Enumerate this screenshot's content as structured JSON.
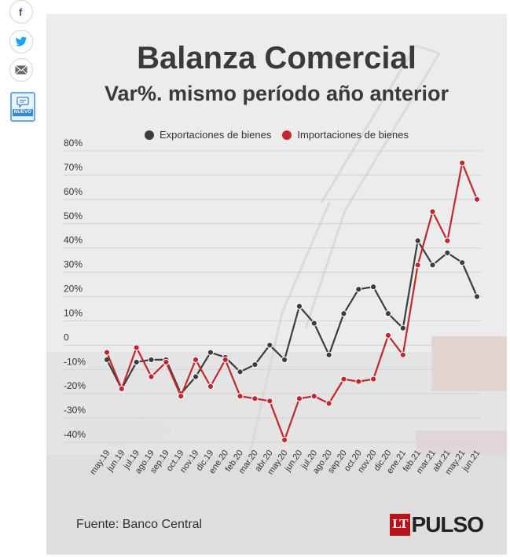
{
  "share": {
    "icons": [
      "facebook-icon",
      "twitter-icon",
      "mail-icon"
    ],
    "comment_badge": "NUEVO"
  },
  "chart_data": {
    "type": "line",
    "title": "Balanza Comercial",
    "subtitle": "Var%. mismo período año anterior",
    "categories": [
      "may.19",
      "jun.19",
      "jul.19",
      "ago.19",
      "sep.19",
      "oct.19",
      "nov.19",
      "dic.19",
      "ene.20",
      "feb.20",
      "mar.20",
      "abr.20",
      "may.20",
      "jun.20",
      "jul.20",
      "ago.20",
      "sep.20",
      "oct.20",
      "nov.20",
      "dic.20",
      "ene.21",
      "feb.21",
      "mar.21",
      "abr.21",
      "may.21",
      "jun.21"
    ],
    "series": [
      {
        "name": "Exportaciones de bienes",
        "color": "#3d3d3d",
        "values": [
          -6,
          -18,
          -7,
          -6,
          -6,
          -20,
          -13,
          -3,
          -5,
          -11,
          -8,
          0,
          -6,
          16,
          9,
          -4,
          13,
          23,
          24,
          13,
          7,
          43,
          33,
          38,
          34,
          20
        ]
      },
      {
        "name": "Importaciones de bienes",
        "color": "#c1272d",
        "values": [
          -3,
          -18,
          -1,
          -13,
          -7,
          -21,
          -6,
          -17,
          -6,
          -21,
          -22,
          -23,
          -39,
          -22,
          -21,
          -24,
          -14,
          -15,
          -14,
          4,
          -4,
          33,
          55,
          43,
          75,
          60
        ]
      }
    ],
    "y_ticks": [
      "80%",
      "70%",
      "60%",
      "50%",
      "40%",
      "30%",
      "20%",
      "10%",
      "0",
      "-10%",
      "-20%",
      "-30%",
      "-40%"
    ],
    "ylim": [
      -40,
      80
    ],
    "grid": true,
    "legend_position": "top-center"
  },
  "footer": {
    "source": "Fuente: Banco Central",
    "logo_lt": "LT",
    "logo_text": "PULSO"
  }
}
